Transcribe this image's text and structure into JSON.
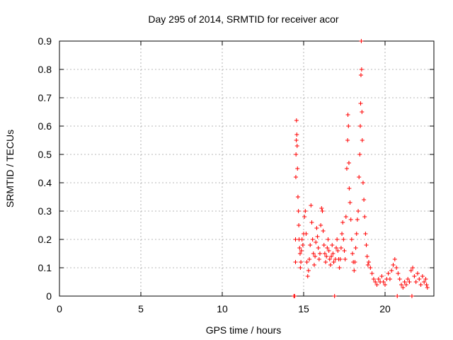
{
  "chart_data": {
    "type": "scatter",
    "title": "Day 295 of 2014, SRMTID for receiver acor",
    "xlabel": "GPS time / hours",
    "ylabel": "SRMTID / TECUs",
    "xlim": [
      0,
      23
    ],
    "ylim": [
      0,
      0.9
    ],
    "x_ticks": [
      0,
      5,
      10,
      15,
      20
    ],
    "y_ticks": [
      0,
      0.1,
      0.2,
      0.3,
      0.4,
      0.5,
      0.6,
      0.7,
      0.8,
      0.9
    ],
    "x_tick_labels": [
      "0",
      "5",
      "10",
      "15",
      "20"
    ],
    "y_tick_labels": [
      "0",
      "0.1",
      "0.2",
      "0.3",
      "0.4",
      "0.5",
      "0.6",
      "0.7",
      "0.8",
      "0.9"
    ],
    "grid": true,
    "marker": "+",
    "color": "#ff0000",
    "series": [
      {
        "name": "SRMTID",
        "points": [
          [
            14.4,
            0.0
          ],
          [
            14.45,
            0.0
          ],
          [
            14.5,
            0.12
          ],
          [
            14.5,
            0.2
          ],
          [
            14.52,
            0.42
          ],
          [
            14.53,
            0.5
          ],
          [
            14.55,
            0.55
          ],
          [
            14.56,
            0.62
          ],
          [
            14.58,
            0.57
          ],
          [
            14.6,
            0.53
          ],
          [
            14.62,
            0.45
          ],
          [
            14.65,
            0.35
          ],
          [
            14.68,
            0.3
          ],
          [
            14.7,
            0.25
          ],
          [
            14.72,
            0.2
          ],
          [
            14.75,
            0.17
          ],
          [
            14.78,
            0.15
          ],
          [
            14.8,
            0.1
          ],
          [
            14.83,
            0.12
          ],
          [
            14.86,
            0.16
          ],
          [
            14.9,
            0.2
          ],
          [
            14.95,
            0.18
          ],
          [
            15.0,
            0.22
          ],
          [
            15.05,
            0.28
          ],
          [
            15.1,
            0.3
          ],
          [
            15.15,
            0.22
          ],
          [
            15.2,
            0.12
          ],
          [
            15.25,
            0.07
          ],
          [
            15.3,
            0.09
          ],
          [
            15.35,
            0.13
          ],
          [
            15.4,
            0.18
          ],
          [
            15.45,
            0.32
          ],
          [
            15.5,
            0.26
          ],
          [
            15.55,
            0.2
          ],
          [
            15.6,
            0.15
          ],
          [
            15.65,
            0.11
          ],
          [
            15.7,
            0.14
          ],
          [
            15.75,
            0.19
          ],
          [
            15.8,
            0.24
          ],
          [
            15.85,
            0.21
          ],
          [
            15.9,
            0.17
          ],
          [
            15.95,
            0.13
          ],
          [
            16.0,
            0.15
          ],
          [
            16.05,
            0.25
          ],
          [
            16.1,
            0.31
          ],
          [
            16.15,
            0.3
          ],
          [
            16.2,
            0.23
          ],
          [
            16.25,
            0.18
          ],
          [
            16.3,
            0.15
          ],
          [
            16.35,
            0.12
          ],
          [
            16.4,
            0.14
          ],
          [
            16.45,
            0.17
          ],
          [
            16.5,
            0.2
          ],
          [
            16.55,
            0.16
          ],
          [
            16.6,
            0.13
          ],
          [
            16.65,
            0.11
          ],
          [
            16.7,
            0.14
          ],
          [
            16.75,
            0.18
          ],
          [
            16.8,
            0.15
          ],
          [
            16.85,
            0.12
          ],
          [
            16.9,
            0.0
          ],
          [
            16.95,
            0.13
          ],
          [
            17.0,
            0.17
          ],
          [
            17.05,
            0.2
          ],
          [
            17.1,
            0.16
          ],
          [
            17.15,
            0.13
          ],
          [
            17.2,
            0.1
          ],
          [
            17.25,
            0.13
          ],
          [
            17.3,
            0.17
          ],
          [
            17.35,
            0.22
          ],
          [
            17.4,
            0.26
          ],
          [
            17.45,
            0.2
          ],
          [
            17.5,
            0.16
          ],
          [
            17.55,
            0.13
          ],
          [
            17.6,
            0.28
          ],
          [
            17.65,
            0.45
          ],
          [
            17.7,
            0.55
          ],
          [
            17.72,
            0.64
          ],
          [
            17.75,
            0.6
          ],
          [
            17.78,
            0.47
          ],
          [
            17.8,
            0.38
          ],
          [
            17.85,
            0.33
          ],
          [
            17.9,
            0.27
          ],
          [
            17.95,
            0.2
          ],
          [
            18.0,
            0.15
          ],
          [
            18.05,
            0.12
          ],
          [
            18.1,
            0.09
          ],
          [
            18.15,
            0.12
          ],
          [
            18.2,
            0.17
          ],
          [
            18.25,
            0.22
          ],
          [
            18.3,
            0.27
          ],
          [
            18.35,
            0.3
          ],
          [
            18.4,
            0.42
          ],
          [
            18.45,
            0.5
          ],
          [
            18.48,
            0.6
          ],
          [
            18.5,
            0.68
          ],
          [
            18.52,
            0.78
          ],
          [
            18.54,
            0.9
          ],
          [
            18.56,
            0.8
          ],
          [
            18.58,
            0.65
          ],
          [
            18.6,
            0.55
          ],
          [
            18.65,
            0.4
          ],
          [
            18.7,
            0.34
          ],
          [
            18.75,
            0.28
          ],
          [
            18.8,
            0.22
          ],
          [
            18.85,
            0.18
          ],
          [
            18.9,
            0.14
          ],
          [
            18.95,
            0.11
          ],
          [
            19.0,
            0.12
          ],
          [
            19.1,
            0.1
          ],
          [
            19.2,
            0.08
          ],
          [
            19.3,
            0.06
          ],
          [
            19.4,
            0.05
          ],
          [
            19.5,
            0.04
          ],
          [
            19.6,
            0.06
          ],
          [
            19.7,
            0.05
          ],
          [
            19.8,
            0.07
          ],
          [
            19.9,
            0.05
          ],
          [
            20.0,
            0.04
          ],
          [
            20.1,
            0.06
          ],
          [
            20.2,
            0.08
          ],
          [
            20.3,
            0.06
          ],
          [
            20.4,
            0.09
          ],
          [
            20.5,
            0.11
          ],
          [
            20.6,
            0.13
          ],
          [
            20.7,
            0.1
          ],
          [
            20.75,
            0.0
          ],
          [
            20.8,
            0.08
          ],
          [
            20.9,
            0.06
          ],
          [
            21.0,
            0.04
          ],
          [
            21.1,
            0.03
          ],
          [
            21.2,
            0.05
          ],
          [
            21.3,
            0.04
          ],
          [
            21.4,
            0.06
          ],
          [
            21.5,
            0.05
          ],
          [
            21.6,
            0.09
          ],
          [
            21.65,
            0.0
          ],
          [
            21.7,
            0.1
          ],
          [
            21.8,
            0.07
          ],
          [
            21.9,
            0.05
          ],
          [
            22.0,
            0.08
          ],
          [
            22.1,
            0.06
          ],
          [
            22.2,
            0.04
          ],
          [
            22.3,
            0.07
          ],
          [
            22.4,
            0.05
          ],
          [
            22.5,
            0.06
          ],
          [
            22.55,
            0.04
          ],
          [
            22.6,
            0.03
          ]
        ]
      }
    ]
  }
}
